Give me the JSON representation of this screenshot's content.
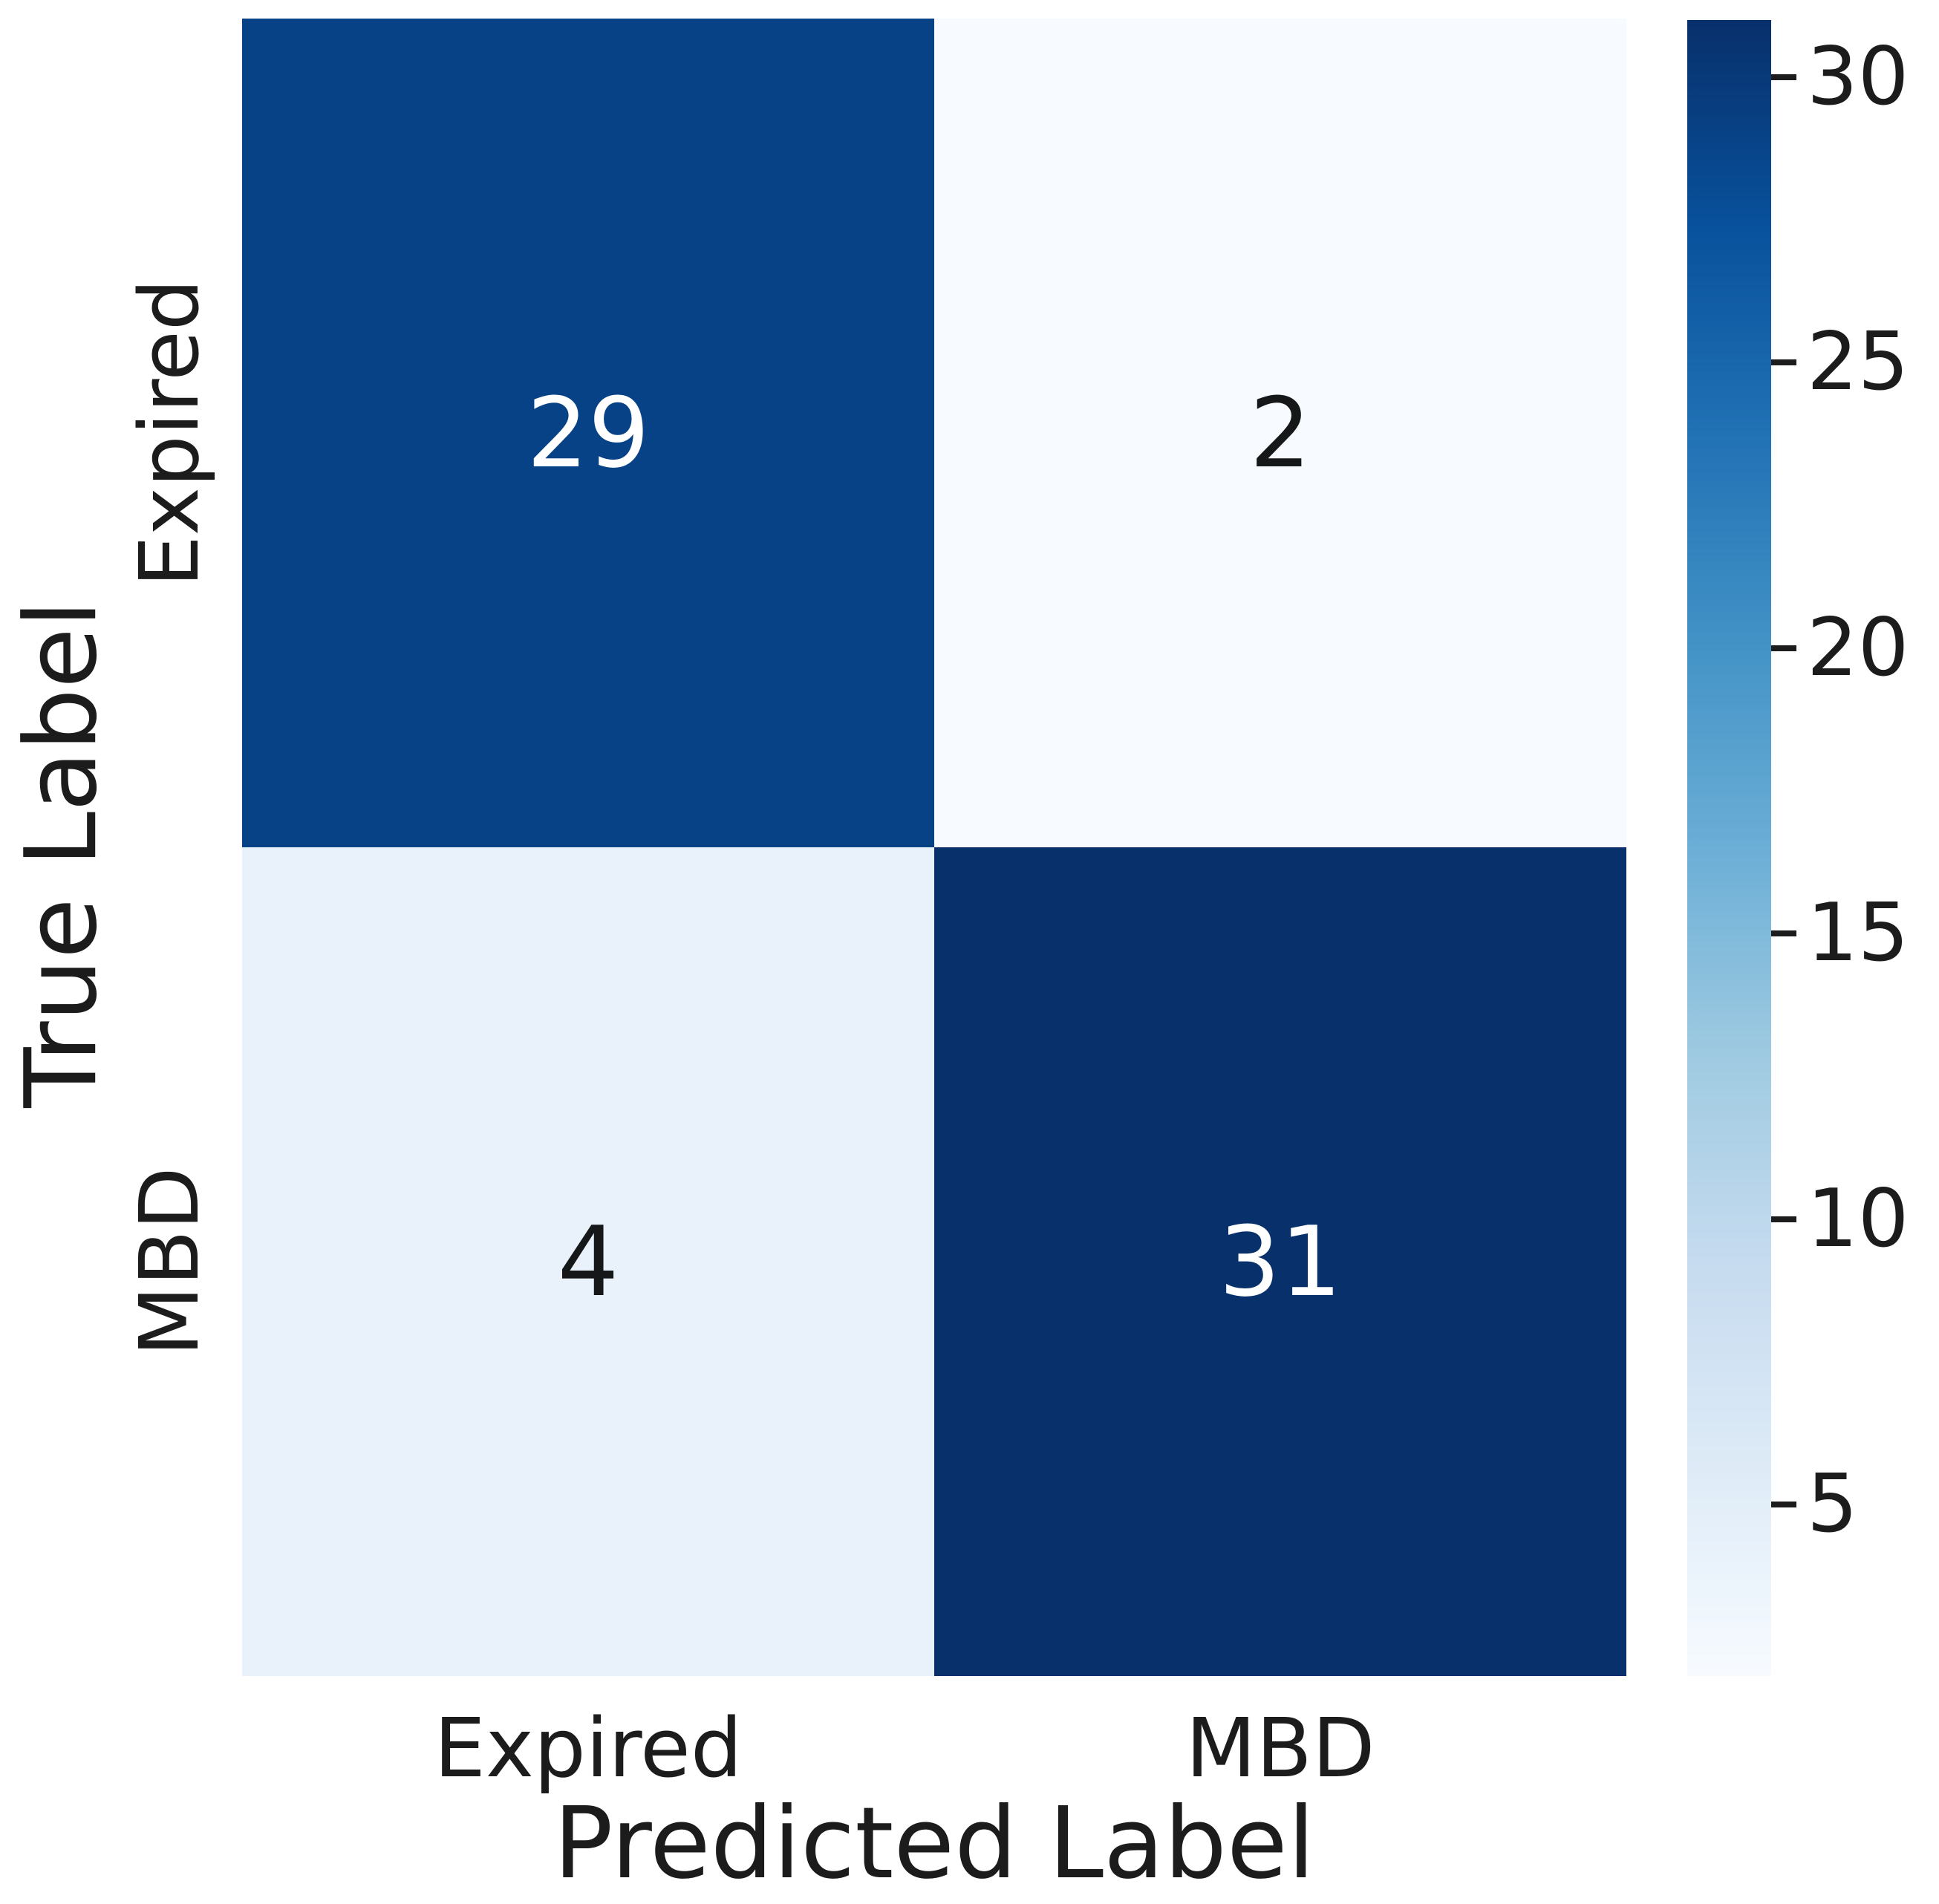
{
  "chart_data": {
    "type": "heatmap",
    "title": "",
    "xlabel": "Predicted Label",
    "ylabel": "True Label",
    "x_ticklabels": [
      "Expired",
      "MBD"
    ],
    "y_ticklabels": [
      "Expired",
      "MBD"
    ],
    "matrix_rows": [
      "Expired",
      "MBD"
    ],
    "matrix_cols": [
      "Expired",
      "MBD"
    ],
    "matrix": [
      [
        29,
        2
      ],
      [
        4,
        31
      ]
    ],
    "cells": [
      {
        "true_label": "Expired",
        "predicted_label": "Expired",
        "value": "29",
        "bg": "#084286",
        "fg": "#ffffff"
      },
      {
        "true_label": "Expired",
        "predicted_label": "MBD",
        "value": "2",
        "bg": "#f7fbff",
        "fg": "#151719"
      },
      {
        "true_label": "MBD",
        "predicted_label": "Expired",
        "value": "4",
        "bg": "#e9f2fb",
        "fg": "#151719"
      },
      {
        "true_label": "MBD",
        "predicted_label": "MBD",
        "value": "31",
        "bg": "#08306b",
        "fg": "#ffffff"
      }
    ],
    "colormap": "Blues",
    "colormap_stops": [
      "#f7fbff",
      "#deebf7",
      "#c6dbef",
      "#9ecae1",
      "#6baed6",
      "#4292c6",
      "#2171b5",
      "#08519c",
      "#08306b"
    ],
    "vmin": 2,
    "vmax": 31,
    "colorbar_ticks": [
      30,
      25,
      20,
      15,
      10,
      5
    ],
    "legend_position": "right-colorbar",
    "grid": false,
    "text_color": "#1c1c1c",
    "background_color": "#ffffff"
  }
}
